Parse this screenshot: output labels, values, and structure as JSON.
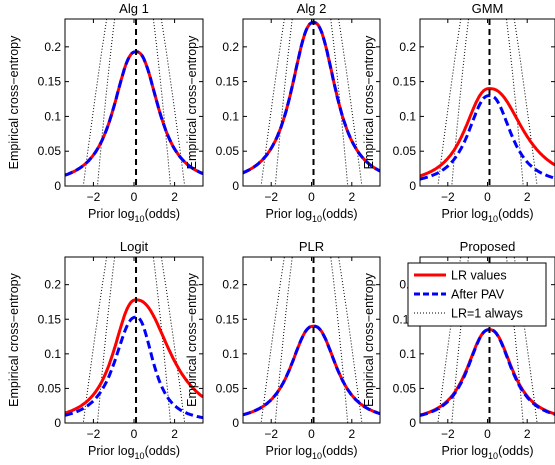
{
  "chart_data": [
    {
      "type": "line",
      "title": "Alg 1",
      "xlabel": "Prior log10(odds)",
      "ylabel": "Empirical cross−entropy",
      "xlim": [
        -3.4,
        3.4
      ],
      "ylim": [
        0,
        0.24
      ],
      "x_ticks": [
        "−2",
        "0",
        "2"
      ],
      "y_ticks": [
        "0",
        "0.05",
        "0.1",
        "0.15",
        "0.2"
      ],
      "peak_lr": 0.193,
      "peak_pav": 0.193,
      "peak_x": 0.1,
      "marker_x": 0.1,
      "series": [
        {
          "name": "LR values",
          "color": "#ff0000"
        },
        {
          "name": "After PAV",
          "color": "#0000ff"
        },
        {
          "name": "LR=1 always",
          "color": "#000000"
        }
      ]
    },
    {
      "type": "line",
      "title": "Alg 2",
      "xlabel": "Prior log10(odds)",
      "ylabel": "",
      "xlim": [
        -3.4,
        3.4
      ],
      "ylim": [
        0,
        0.24
      ],
      "x_ticks": [
        "−2",
        "0",
        "2"
      ],
      "y_ticks": [
        "0",
        "0.05",
        "0.1",
        "0.15",
        "0.2"
      ],
      "peak_lr": 0.235,
      "peak_pav": 0.235,
      "peak_x": 0.1,
      "marker_x": 0.1,
      "series": [
        {
          "name": "LR values",
          "color": "#ff0000"
        },
        {
          "name": "After PAV",
          "color": "#0000ff"
        },
        {
          "name": "LR=1 always",
          "color": "#000000"
        }
      ]
    },
    {
      "type": "line",
      "title": "GMM",
      "xlabel": "Prior log10(odds)",
      "ylabel": "",
      "xlim": [
        -3.4,
        3.4
      ],
      "ylim": [
        0,
        0.24
      ],
      "x_ticks": [
        "−2",
        "0",
        "2"
      ],
      "y_ticks": [
        "0",
        "0.05",
        "0.1",
        "0.15",
        "0.2"
      ],
      "peak_lr": 0.14,
      "peak_pav": 0.13,
      "peak_x": 0.1,
      "marker_x": 0.1,
      "series": [
        {
          "name": "LR values",
          "color": "#ff0000"
        },
        {
          "name": "After PAV",
          "color": "#0000ff"
        },
        {
          "name": "LR=1 always",
          "color": "#000000"
        }
      ]
    },
    {
      "type": "line",
      "title": "Logit",
      "xlabel": "Prior log10(odds)",
      "ylabel": "Empirical cross−entropy",
      "xlim": [
        -3.4,
        3.4
      ],
      "ylim": [
        0,
        0.24
      ],
      "x_ticks": [
        "−2",
        "0",
        "2"
      ],
      "y_ticks": [
        "0",
        "0.05",
        "0.1",
        "0.15",
        "0.2"
      ],
      "peak_lr": 0.178,
      "peak_pav": 0.153,
      "peak_x": 0.1,
      "marker_x": 0.1,
      "series": [
        {
          "name": "LR values",
          "color": "#ff0000"
        },
        {
          "name": "After PAV",
          "color": "#0000ff"
        },
        {
          "name": "LR=1 always",
          "color": "#000000"
        }
      ]
    },
    {
      "type": "line",
      "title": "PLR",
      "xlabel": "Prior log10(odds)",
      "ylabel": "",
      "xlim": [
        -3.4,
        3.4
      ],
      "ylim": [
        0,
        0.24
      ],
      "x_ticks": [
        "−2",
        "0",
        "2"
      ],
      "y_ticks": [
        "0",
        "0.05",
        "0.1",
        "0.15",
        "0.2"
      ],
      "peak_lr": 0.14,
      "peak_pav": 0.14,
      "peak_x": 0.1,
      "marker_x": 0.1,
      "series": [
        {
          "name": "LR values",
          "color": "#ff0000"
        },
        {
          "name": "After PAV",
          "color": "#0000ff"
        },
        {
          "name": "LR=1 always",
          "color": "#000000"
        }
      ]
    },
    {
      "type": "line",
      "title": "Proposed",
      "xlabel": "Prior log10(odds)",
      "ylabel": "",
      "xlim": [
        -3.4,
        3.4
      ],
      "ylim": [
        0,
        0.24
      ],
      "x_ticks": [
        "−2",
        "0",
        "2"
      ],
      "y_ticks": [
        "0",
        "0.05",
        "0.1",
        "0.15",
        "0.2"
      ],
      "peak_lr": 0.135,
      "peak_pav": 0.135,
      "peak_x": 0.1,
      "marker_x": 0.1,
      "series": [
        {
          "name": "LR values",
          "color": "#ff0000"
        },
        {
          "name": "After PAV",
          "color": "#0000ff"
        },
        {
          "name": "LR=1 always",
          "color": "#000000"
        }
      ],
      "legend": {
        "position": "top",
        "entries": [
          "LR values",
          "After PAV",
          "LR=1 always"
        ]
      }
    }
  ]
}
